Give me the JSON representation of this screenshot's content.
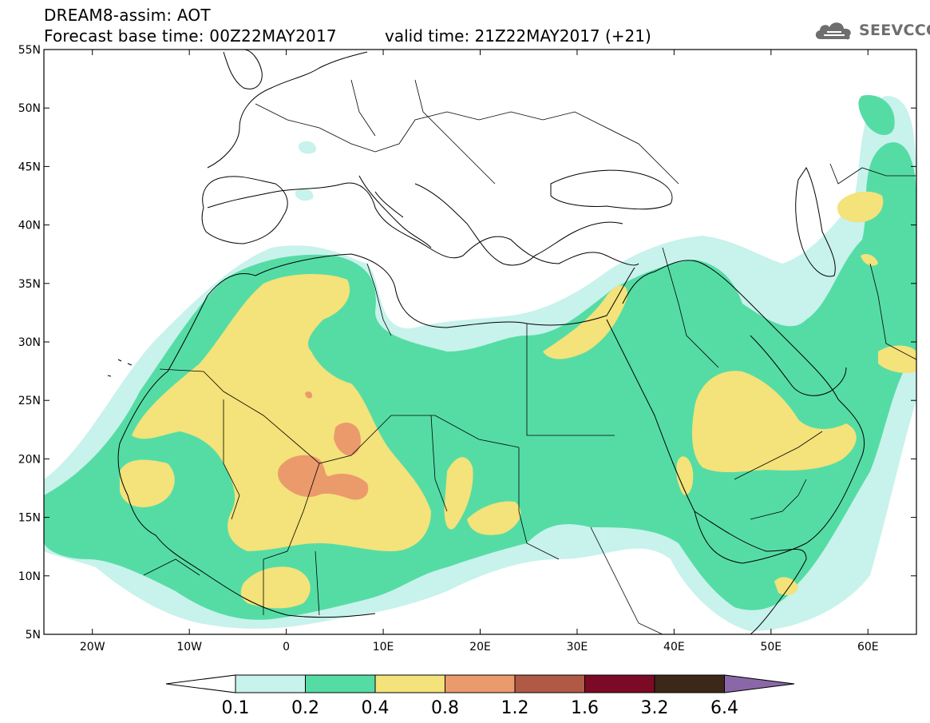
{
  "header": {
    "line1": "DREAM8-assim: AOT",
    "line2": "Forecast base time: 00Z22MAY2017",
    "valid": "valid time: 21Z22MAY2017 (+21)"
  },
  "logo": {
    "text": "SEEVCCC",
    "icon": "cloud-icon"
  },
  "map": {
    "projection": "lat-lon",
    "lon_range": [
      -25,
      65
    ],
    "lat_range": [
      5,
      55
    ],
    "lat_ticks": [
      "55N",
      "50N",
      "45N",
      "40N",
      "35N",
      "30N",
      "25N",
      "20N",
      "15N",
      "10N",
      "5N"
    ],
    "lon_ticks": [
      "20W",
      "10W",
      "0",
      "10E",
      "20E",
      "30E",
      "40E",
      "50E",
      "60E"
    ]
  },
  "colorbar": {
    "labels": [
      "0.1",
      "0.2",
      "0.4",
      "0.8",
      "1.2",
      "1.6",
      "3.2",
      "6.4"
    ],
    "colors": [
      "#c8f2ec",
      "#55dca5",
      "#f4e27a",
      "#eb9a6c",
      "#b05a46",
      "#7c0a27",
      "#3c2818",
      "#8a68a8"
    ],
    "under_color": "#ffffff"
  },
  "palette": {
    "c1": "#c8f2ec",
    "c2": "#55dca5",
    "c3": "#f4e27a",
    "c4": "#eb9a6c"
  }
}
